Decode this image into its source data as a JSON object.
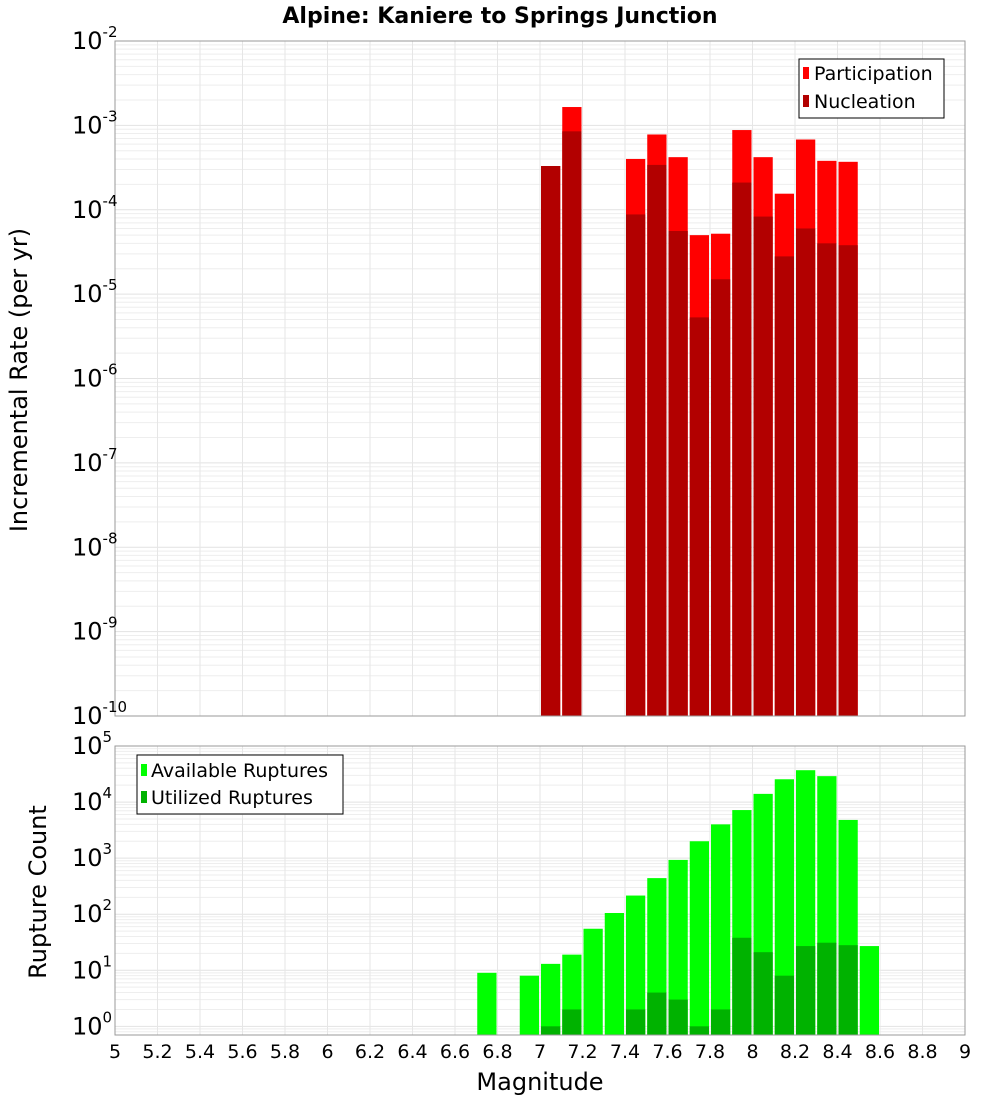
{
  "chart_data": {
    "title": "Alpine: Kaniere to Springs Junction",
    "xlabel": "Magnitude",
    "xlim": [
      5,
      9
    ],
    "x_ticks": [
      "5",
      "5.2",
      "5.4",
      "5.6",
      "5.8",
      "6",
      "6.2",
      "6.4",
      "6.6",
      "6.8",
      "7",
      "7.2",
      "7.4",
      "7.6",
      "7.8",
      "8",
      "8.2",
      "8.4",
      "8.6",
      "8.8",
      "9"
    ],
    "bin_width": 0.1,
    "panels": [
      {
        "type": "bar",
        "scale": "log",
        "ylabel": "Incremental Rate (per yr)",
        "ylim": [
          1e-10,
          0.01
        ],
        "y_tick_exponents": [
          "-10",
          "-9",
          "-8",
          "-7",
          "-6",
          "-5",
          "-4",
          "-3",
          "-2"
        ],
        "grid": true,
        "legend_position": "top-right",
        "legend": [
          {
            "name": "Participation",
            "color": "#ff0000"
          },
          {
            "name": "Nucleation",
            "color": "#b20000"
          }
        ],
        "x": [
          7.05,
          7.15,
          7.45,
          7.55,
          7.65,
          7.75,
          7.85,
          7.95,
          8.05,
          8.15,
          8.25,
          8.35,
          8.45
        ],
        "series": [
          {
            "name": "Participation",
            "color": "#ff0000",
            "values": [
              0.00033,
              0.00165,
              0.0004,
              0.00078,
              0.00042,
              5e-05,
              5.2e-05,
              0.00088,
              0.00042,
              0.000155,
              0.00068,
              0.00038,
              0.00037
            ]
          },
          {
            "name": "Nucleation",
            "color": "#b20000",
            "values": [
              0.00033,
              0.00085,
              8.8e-05,
              0.00034,
              5.6e-05,
              5.3e-06,
              1.5e-05,
              0.00021,
              8.3e-05,
              2.8e-05,
              6e-05,
              4e-05,
              3.8e-05
            ]
          }
        ]
      },
      {
        "type": "bar",
        "scale": "log",
        "ylabel": "Rupture Count",
        "ylim": [
          0.7,
          100000.0
        ],
        "y_tick_exponents": [
          "0",
          "1",
          "2",
          "3",
          "4",
          "5"
        ],
        "grid": true,
        "legend_position": "top-left",
        "legend": [
          {
            "name": "Available Ruptures",
            "color": "#00ff00"
          },
          {
            "name": "Utilized Ruptures",
            "color": "#00b200"
          }
        ],
        "x": [
          6.75,
          6.95,
          7.05,
          7.15,
          7.25,
          7.35,
          7.45,
          7.55,
          7.65,
          7.75,
          7.85,
          7.95,
          8.05,
          8.15,
          8.25,
          8.35,
          8.45,
          8.55
        ],
        "series": [
          {
            "name": "Available Ruptures",
            "color": "#00ff00",
            "values": [
              9,
              8,
              13,
              19,
              55,
              105,
              215,
              440,
              930,
              2000,
              4000,
              7200,
              14000,
              25500,
              37000,
              29000,
              4800,
              27
            ]
          },
          {
            "name": "Utilized Ruptures",
            "color": "#00b200",
            "values": [
              0,
              0,
              1,
              2,
              0,
              0,
              2,
              4,
              3,
              1,
              2,
              38,
              21,
              8,
              27,
              31,
              28,
              0
            ]
          }
        ]
      }
    ]
  }
}
